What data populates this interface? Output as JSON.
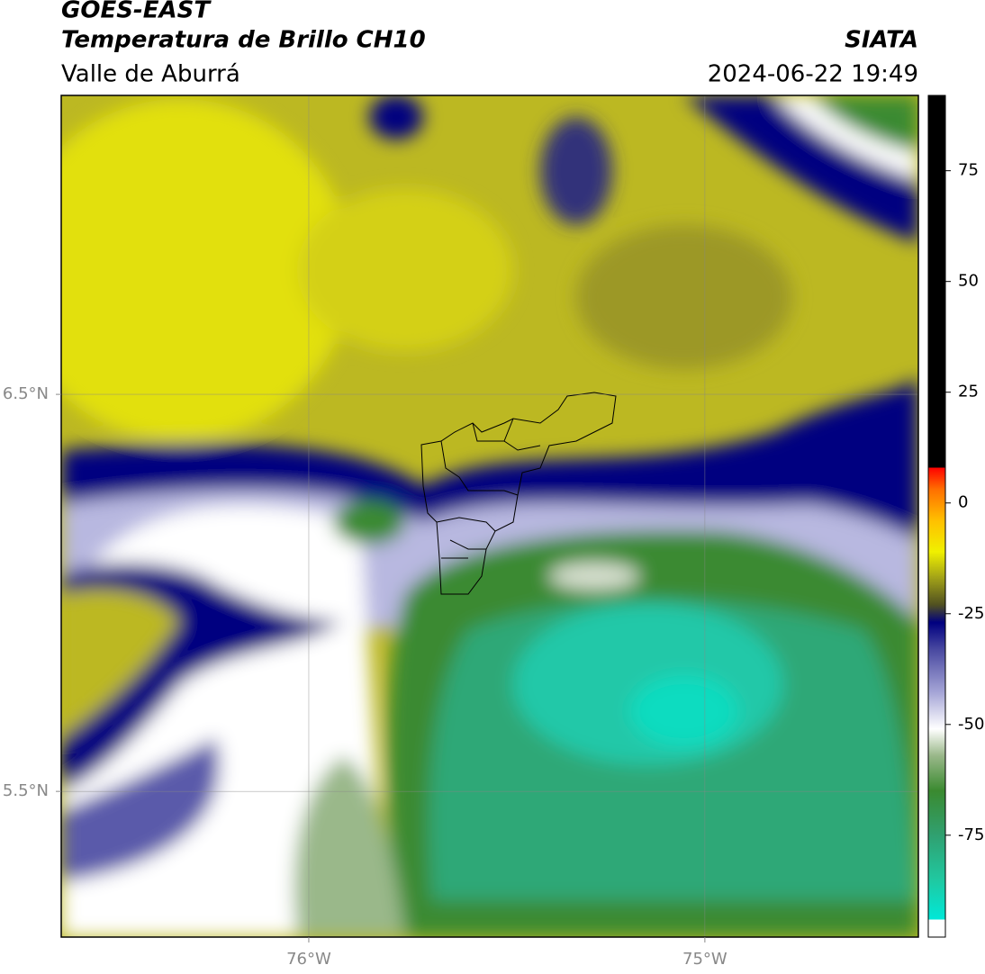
{
  "header": {
    "title": "GOES-EAST",
    "subtitle": "Temperatura de Brillo CH10",
    "region": "Valle de Aburrá",
    "source": "SIATA",
    "datetime": "2024-06-22 19:49"
  },
  "map": {
    "xlim": [
      -76.625,
      -74.461
    ],
    "ylim": [
      5.133,
      7.253
    ],
    "xticks": [
      {
        "value": -76,
        "label": "76°W"
      },
      {
        "value": -75,
        "label": "75°W"
      }
    ],
    "yticks": [
      {
        "value": 6.5,
        "label": "6.5°N"
      },
      {
        "value": 5.5,
        "label": "5.5°N"
      }
    ],
    "grid": true
  },
  "colorbar": {
    "lim": [
      -98,
      92
    ],
    "ticks": [
      75,
      50,
      25,
      0,
      -25,
      -50,
      -75
    ],
    "colormap": [
      {
        "value": -98,
        "color": "#ffffff"
      },
      {
        "value": -94,
        "color": "#ffffff"
      },
      {
        "value": -94,
        "color": "#00e8d8"
      },
      {
        "value": -85,
        "color": "#20c8a0"
      },
      {
        "value": -75,
        "color": "#30a070"
      },
      {
        "value": -65,
        "color": "#3a8a30"
      },
      {
        "value": -57,
        "color": "#9ab88a"
      },
      {
        "value": -51,
        "color": "#ffffff"
      },
      {
        "value": -43,
        "color": "#a8a8d8"
      },
      {
        "value": -33,
        "color": "#4848a0"
      },
      {
        "value": -27,
        "color": "#000080"
      },
      {
        "value": -23,
        "color": "#505020"
      },
      {
        "value": -17,
        "color": "#a0a018"
      },
      {
        "value": -11,
        "color": "#f0f000"
      },
      {
        "value": -4,
        "color": "#ffc000"
      },
      {
        "value": 3,
        "color": "#ff7000"
      },
      {
        "value": 8,
        "color": "#ff0000"
      },
      {
        "value": 8,
        "color": "#000000"
      },
      {
        "value": 92,
        "color": "#000000"
      }
    ]
  }
}
